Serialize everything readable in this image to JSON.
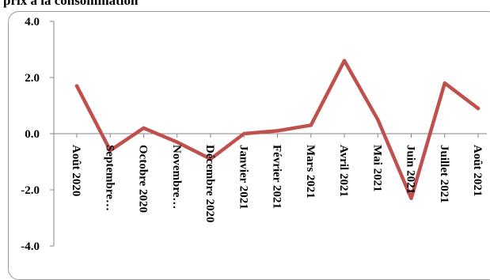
{
  "chart_data": {
    "type": "line",
    "title": "prix à la consommation",
    "categories": [
      "Août 2020",
      "Septembre…",
      "Octobre 2020",
      "Novembre…",
      "Décembre 2020",
      "Janvier 2021",
      "Février 2021",
      "Mars 2021",
      "Avril 2021",
      "Mai 2021",
      "Juin 2021",
      "Juillet 2021",
      "Août 2021"
    ],
    "series": [
      {
        "values": [
          1.7,
          -0.6,
          0.2,
          -0.3,
          -0.9,
          0.0,
          0.1,
          0.3,
          2.6,
          0.5,
          -2.3,
          1.8,
          0.9
        ]
      }
    ],
    "ylim": [
      -4.0,
      4.0
    ],
    "yticks": [
      "4.0",
      "2.0",
      "0.0",
      "-2.0",
      "-4.0"
    ],
    "grid": false,
    "legend": "none",
    "line_color": "#c0504d"
  }
}
